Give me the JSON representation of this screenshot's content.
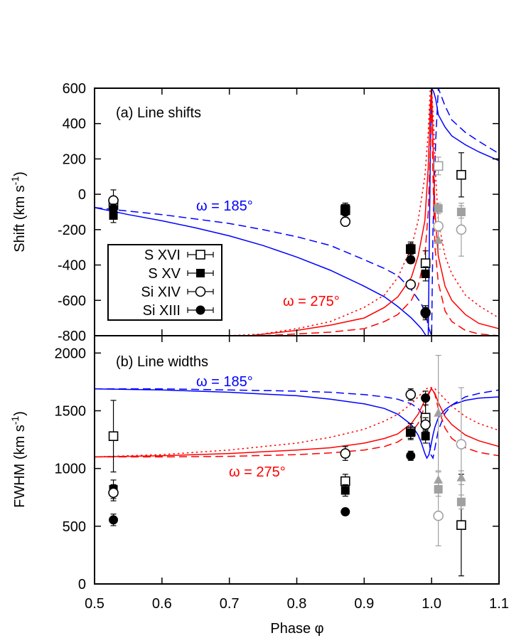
{
  "chart_data": {
    "type": "scatter",
    "xlabel": "Phase φ",
    "x_ticks": [
      "0.5",
      "0.6",
      "0.7",
      "0.8",
      "0.9",
      "1.0",
      "1.1"
    ],
    "xlim": [
      0.5,
      1.1
    ],
    "legend": {
      "placement": "center-left",
      "entries": [
        "S XVI",
        "S XV",
        "Si XIV",
        "Si XIII"
      ]
    },
    "panels": [
      {
        "title": "(a) Line shifts",
        "ylabel": "Shift (km s-1)",
        "ylabel_main": "Shift (km s",
        "ylabel_sup": "-1",
        "ylabel_end": ")",
        "ylim": [
          -800,
          600
        ],
        "y_ticks": [
          "600",
          "400",
          "200",
          "0",
          "-200",
          "-400",
          "-600",
          "-800"
        ],
        "annotations": [
          {
            "text": "ω = 185°",
            "color": "#0000ff"
          },
          {
            "text": "ω = 275°",
            "color": "#ff0000"
          }
        ],
        "series": [
          {
            "name": "S XVI",
            "marker": "open-square",
            "points": [
              {
                "x": 0.528,
                "y": -60,
                "err": 30,
                "gray": false
              },
              {
                "x": 0.872,
                "y": -90,
                "err": 40,
                "gray": false
              },
              {
                "x": 0.969,
                "y": -310,
                "err": 40,
                "gray": false
              },
              {
                "x": 0.991,
                "y": -390,
                "err": 70,
                "gray": false
              },
              {
                "x": 1.01,
                "y": 160,
                "err": 50,
                "gray": true
              },
              {
                "x": 1.044,
                "y": 110,
                "err": 125,
                "gray": false
              }
            ]
          },
          {
            "name": "S XV",
            "marker": "filled-square",
            "points": [
              {
                "x": 0.528,
                "y": -120,
                "err": 40,
                "gray": false
              },
              {
                "x": 0.872,
                "y": -80,
                "err": 30,
                "gray": false
              },
              {
                "x": 0.969,
                "y": -310,
                "err": 30,
                "gray": false
              },
              {
                "x": 0.991,
                "y": -450,
                "err": 40,
                "gray": false
              },
              {
                "x": 1.01,
                "y": -80,
                "err": 30,
                "gray": true
              },
              {
                "x": 1.044,
                "y": -100,
                "err": 35,
                "gray": true
              }
            ]
          },
          {
            "name": "Si XIV",
            "marker": "open-circle",
            "points": [
              {
                "x": 0.528,
                "y": -35,
                "err": 60,
                "gray": false
              },
              {
                "x": 0.872,
                "y": -155,
                "err": 20,
                "gray": false
              },
              {
                "x": 0.969,
                "y": -510,
                "err": 20,
                "gray": false
              },
              {
                "x": 0.991,
                "y": -670,
                "err": 40,
                "gray": false
              },
              {
                "x": 1.01,
                "y": -180,
                "err": 80,
                "gray": true
              },
              {
                "x": 1.044,
                "y": -200,
                "err": 150,
                "gray": true
              }
            ]
          },
          {
            "name": "Si XIII",
            "marker": "filled-circle",
            "points": [
              {
                "x": 0.528,
                "y": -80,
                "err": 25,
                "gray": false
              },
              {
                "x": 0.872,
                "y": -100,
                "err": 20,
                "gray": false
              },
              {
                "x": 0.969,
                "y": -370,
                "err": 20,
                "gray": false
              },
              {
                "x": 0.991,
                "y": -670,
                "err": 30,
                "gray": false
              }
            ]
          },
          {
            "name": "",
            "marker": "filled-triangle",
            "points": [
              {
                "x": 1.01,
                "y": -260,
                "err": 50,
                "gray": true
              }
            ]
          }
        ],
        "model_curves": [
          {
            "color": "#0000ff",
            "style": "solid",
            "x": [
              0.5,
              0.55,
              0.6,
              0.65,
              0.7,
              0.75,
              0.8,
              0.85,
              0.9,
              0.93,
              0.95,
              0.97,
              0.985,
              0.99,
              0.995,
              0.998,
              1.0,
              1.003,
              1.006,
              1.01,
              1.02,
              1.03,
              1.05,
              1.07,
              1.1
            ],
            "y": [
              -75,
              -115,
              -150,
              -190,
              -235,
              -290,
              -355,
              -430,
              -520,
              -580,
              -635,
              -700,
              -760,
              -790,
              -820,
              200,
              600,
              580,
              540,
              450,
              380,
              330,
              280,
              240,
              190
            ]
          },
          {
            "color": "#0000ff",
            "style": "dashed",
            "x": [
              0.5,
              0.55,
              0.6,
              0.65,
              0.7,
              0.75,
              0.8,
              0.85,
              0.9,
              0.93,
              0.95,
              0.97,
              0.985,
              0.992,
              0.996,
              1.0,
              1.002,
              1.006,
              1.01,
              1.02,
              1.03,
              1.05,
              1.07,
              1.1
            ],
            "y": [
              -75,
              -95,
              -115,
              -140,
              -165,
              -200,
              -240,
              -290,
              -370,
              -420,
              -460,
              -540,
              -620,
              -690,
              -760,
              -800,
              -200,
              300,
              600,
              500,
              420,
              350,
              300,
              230
            ]
          },
          {
            "color": "#ff0000",
            "style": "solid",
            "x": [
              0.73,
              0.8,
              0.85,
              0.9,
              0.93,
              0.95,
              0.97,
              0.98,
              0.99,
              0.995,
              0.998,
              1.0,
              1.002,
              1.005,
              1.01,
              1.02,
              1.03,
              1.05,
              1.07,
              1.1
            ],
            "y": [
              -800,
              -770,
              -740,
              -700,
              -640,
              -580,
              -470,
              -350,
              -150,
              150,
              500,
              600,
              300,
              -100,
              -350,
              -520,
              -600,
              -680,
              -730,
              -760
            ]
          },
          {
            "color": "#ff0000",
            "style": "dashed",
            "x": [
              0.75,
              0.8,
              0.85,
              0.9,
              0.93,
              0.95,
              0.97,
              0.98,
              0.99,
              0.995,
              0.998,
              1.0,
              1.002,
              1.005,
              1.01,
              1.02,
              1.03,
              1.05,
              1.07,
              1.1
            ],
            "y": [
              -800,
              -790,
              -780,
              -760,
              -720,
              -680,
              -600,
              -520,
              -350,
              -100,
              250,
              600,
              100,
              -300,
              -500,
              -660,
              -720,
              -770,
              -790,
              -800
            ]
          },
          {
            "color": "#ff0000",
            "style": "dotted",
            "x": [
              0.7,
              0.75,
              0.8,
              0.85,
              0.9,
              0.93,
              0.95,
              0.97,
              0.98,
              0.99,
              0.995,
              0.998,
              1.0,
              1.003,
              1.006,
              1.01,
              1.02,
              1.03,
              1.05,
              1.07,
              1.1
            ],
            "y": [
              -800,
              -790,
              -760,
              -720,
              -640,
              -570,
              -470,
              -300,
              -150,
              100,
              350,
              600,
              600,
              400,
              100,
              -150,
              -350,
              -450,
              -570,
              -630,
              -700
            ]
          }
        ]
      },
      {
        "title": "(b) Line widths",
        "ylabel": "FWHM (km s-1)",
        "ylabel_main": "FWHM (km s",
        "ylabel_sup": "-1",
        "ylabel_end": ")",
        "ylim": [
          0,
          2150
        ],
        "y_ticks": [
          "2000",
          "1500",
          "1000",
          "500",
          "0"
        ],
        "annotations": [
          {
            "text": "ω = 185°",
            "color": "#0000ff"
          },
          {
            "text": "ω = 275°",
            "color": "#ff0000"
          }
        ],
        "series": [
          {
            "name": "S XVI",
            "marker": "open-square",
            "points": [
              {
                "x": 0.528,
                "y": 1280,
                "err": 310,
                "gray": false
              },
              {
                "x": 0.872,
                "y": 890,
                "err": 60,
                "gray": false
              },
              {
                "x": 0.969,
                "y": 1320,
                "err": 70,
                "gray": false
              },
              {
                "x": 0.991,
                "y": 1440,
                "err": 110,
                "gray": false
              },
              {
                "x": 1.044,
                "y": 510,
                "err": 440,
                "gray": false
              }
            ]
          },
          {
            "name": "S XV",
            "marker": "filled-square",
            "points": [
              {
                "x": 0.528,
                "y": 820,
                "err": 80,
                "gray": false
              },
              {
                "x": 0.872,
                "y": 810,
                "err": 50,
                "gray": false
              },
              {
                "x": 0.969,
                "y": 1310,
                "err": 50,
                "gray": false
              },
              {
                "x": 0.991,
                "y": 1280,
                "err": 60,
                "gray": false
              },
              {
                "x": 1.01,
                "y": 820,
                "err": 60,
                "gray": true
              },
              {
                "x": 1.044,
                "y": 710,
                "err": 60,
                "gray": true
              }
            ]
          },
          {
            "name": "Si XIV",
            "marker": "open-circle",
            "points": [
              {
                "x": 0.528,
                "y": 790,
                "err": 70,
                "gray": false
              },
              {
                "x": 0.872,
                "y": 1130,
                "err": 60,
                "gray": false
              },
              {
                "x": 0.969,
                "y": 1640,
                "err": 50,
                "gray": false
              },
              {
                "x": 0.991,
                "y": 1380,
                "err": 60,
                "gray": false
              },
              {
                "x": 1.01,
                "y": 590,
                "err": 260,
                "gray": true
              },
              {
                "x": 1.044,
                "y": 1210,
                "err": 490,
                "gray": true
              }
            ]
          },
          {
            "name": "Si XIII",
            "marker": "filled-circle",
            "points": [
              {
                "x": 0.528,
                "y": 555,
                "err": 50,
                "gray": false
              },
              {
                "x": 0.872,
                "y": 625,
                "err": 30,
                "gray": false
              },
              {
                "x": 0.969,
                "y": 1110,
                "err": 40,
                "gray": false
              },
              {
                "x": 0.991,
                "y": 1610,
                "err": 60,
                "gray": false
              }
            ]
          },
          {
            "name": "",
            "marker": "filled-triangle",
            "points": [
              {
                "x": 1.01,
                "y": 1480,
                "err": 500,
                "gray": true
              },
              {
                "x": 1.01,
                "y": 900,
                "err": 70,
                "gray": true
              },
              {
                "x": 1.044,
                "y": 920,
                "err": 60,
                "gray": true
              }
            ]
          }
        ],
        "model_curves": [
          {
            "color": "#0000ff",
            "style": "solid",
            "x": [
              0.5,
              0.6,
              0.7,
              0.8,
              0.85,
              0.9,
              0.93,
              0.95,
              0.97,
              0.98,
              0.985,
              0.99,
              0.993,
              0.996,
              0.999,
              1.002,
              1.005,
              1.01,
              1.02,
              1.03,
              1.05,
              1.07,
              1.1
            ],
            "y": [
              1690,
              1680,
              1660,
              1630,
              1600,
              1560,
              1520,
              1470,
              1380,
              1290,
              1220,
              1130,
              1090,
              1120,
              1200,
              1290,
              1360,
              1440,
              1510,
              1550,
              1590,
              1610,
              1620
            ]
          },
          {
            "color": "#0000ff",
            "style": "dashed",
            "x": [
              0.5,
              0.6,
              0.7,
              0.8,
              0.85,
              0.9,
              0.93,
              0.95,
              0.97,
              0.98,
              0.985,
              0.99,
              0.995,
              0.999,
              1.002,
              1.005,
              1.01,
              1.02,
              1.03,
              1.05,
              1.07,
              1.1
            ],
            "y": [
              1690,
              1690,
              1680,
              1670,
              1660,
              1640,
              1620,
              1600,
              1560,
              1520,
              1480,
              1420,
              1300,
              1120,
              1090,
              1180,
              1330,
              1480,
              1550,
              1620,
              1650,
              1680
            ]
          },
          {
            "color": "#ff0000",
            "style": "solid",
            "x": [
              0.5,
              0.6,
              0.7,
              0.8,
              0.85,
              0.9,
              0.93,
              0.95,
              0.97,
              0.98,
              0.99,
              0.995,
              1.0,
              1.005,
              1.01,
              1.02,
              1.03,
              1.05,
              1.07,
              1.1
            ],
            "y": [
              1100,
              1110,
              1130,
              1160,
              1180,
              1220,
              1260,
              1300,
              1390,
              1470,
              1590,
              1650,
              1690,
              1650,
              1570,
              1450,
              1380,
              1290,
              1240,
              1190
            ]
          },
          {
            "color": "#ff0000",
            "style": "dashed",
            "x": [
              0.5,
              0.6,
              0.7,
              0.8,
              0.85,
              0.9,
              0.93,
              0.95,
              0.97,
              0.98,
              0.99,
              0.995,
              1.0,
              1.005,
              1.01,
              1.02,
              1.03,
              1.05,
              1.07,
              1.1
            ],
            "y": [
              1100,
              1100,
              1105,
              1120,
              1135,
              1160,
              1190,
              1230,
              1310,
              1390,
              1540,
              1630,
              1700,
              1640,
              1520,
              1350,
              1260,
              1180,
              1140,
              1110
            ]
          },
          {
            "color": "#ff0000",
            "style": "dotted",
            "x": [
              0.5,
              0.6,
              0.7,
              0.8,
              0.85,
              0.9,
              0.93,
              0.95,
              0.97,
              0.98,
              0.99,
              0.995,
              1.0,
              1.005,
              1.01,
              1.02,
              1.03,
              1.05,
              1.07,
              1.1
            ],
            "y": [
              1100,
              1120,
              1160,
              1220,
              1270,
              1340,
              1410,
              1470,
              1560,
              1620,
              1680,
              1700,
              1700,
              1690,
              1660,
              1600,
              1540,
              1450,
              1390,
              1330
            ]
          }
        ]
      }
    ]
  }
}
